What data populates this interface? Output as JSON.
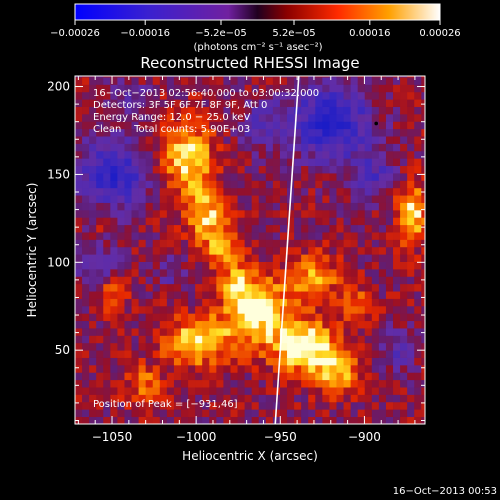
{
  "chart_data": {
    "type": "heatmap",
    "title": "Reconstructed RHESSI Image",
    "xlabel": "Heliocentric X (arcsec)",
    "ylabel": "Heliocentric Y (arcsec)",
    "xlim": [
      -1072,
      -864
    ],
    "ylim": [
      8,
      206
    ],
    "x_ticks": [
      -1050,
      -1000,
      -950,
      -900
    ],
    "x_tick_labels": [
      "−1050",
      "−1000",
      "−950",
      "−900"
    ],
    "y_ticks": [
      50,
      100,
      150,
      200
    ],
    "y_tick_labels": [
      "50",
      "100",
      "150",
      "200"
    ],
    "colorbar": {
      "min": -0.00026,
      "max": 0.00026,
      "ticks": [
        -0.00026,
        -0.00016,
        -5.2e-05,
        5.2e-05,
        0.00016,
        0.00026
      ],
      "tick_labels": [
        "−0.00026",
        "−0.00016",
        "−5.2e−05",
        "5.2e−05",
        "0.00016",
        "0.00026"
      ],
      "unit_label": "(photons cm⁻² s⁻¹ asec⁻²)"
    },
    "info_lines": [
      "16−Oct−2013 02:56:40.000 to 03:00:32.000",
      "Detectors: 3F 5F 6F 7F 8F 9F, Att 0",
      "Energy Range: 12.0 − 25.0 keV",
      "Clean    Total counts: 5.90E+03"
    ],
    "peak_label": "Position of Peak = [−931,46]",
    "peak": {
      "x": -931,
      "y": 46
    },
    "limb": [
      [
        -953,
        8
      ],
      [
        -939,
        206
      ]
    ],
    "timestamp": "16−Oct−2013 00:53",
    "grid": false,
    "colors": {
      "background": "#000000",
      "axes": "#ffffff",
      "text": "#ffffff",
      "limb": "#ffffff",
      "map_low": "#1a1fb0",
      "map_mid": "#6a2aa8",
      "map_high": "#ffd000"
    },
    "blobs": [
      {
        "x": -1005,
        "y": 160,
        "sx": 10,
        "sy": 14,
        "a": 0.00022
      },
      {
        "x": -995,
        "y": 128,
        "sx": 9,
        "sy": 10,
        "a": 0.00018
      },
      {
        "x": -985,
        "y": 108,
        "sx": 8,
        "sy": 9,
        "a": 0.00014
      },
      {
        "x": -965,
        "y": 72,
        "sx": 14,
        "sy": 14,
        "a": 0.00024
      },
      {
        "x": -935,
        "y": 52,
        "sx": 12,
        "sy": 10,
        "a": 0.00026
      },
      {
        "x": -915,
        "y": 38,
        "sx": 9,
        "sy": 9,
        "a": 0.00018
      },
      {
        "x": -1000,
        "y": 55,
        "sx": 13,
        "sy": 9,
        "a": 0.00022
      },
      {
        "x": -1030,
        "y": 30,
        "sx": 8,
        "sy": 8,
        "a": 0.00012
      },
      {
        "x": -1050,
        "y": 82,
        "sx": 7,
        "sy": 7,
        "a": 0.0001
      },
      {
        "x": -930,
        "y": 92,
        "sx": 10,
        "sy": 9,
        "a": 0.00016
      },
      {
        "x": -872,
        "y": 128,
        "sx": 6,
        "sy": 12,
        "a": 0.00022
      },
      {
        "x": -905,
        "y": 76,
        "sx": 7,
        "sy": 7,
        "a": 0.00012
      },
      {
        "x": -1055,
        "y": 125,
        "sx": 5,
        "sy": 5,
        "a": 8e-05
      },
      {
        "x": -975,
        "y": 88,
        "sx": 6,
        "sy": 6,
        "a": 0.00012
      },
      {
        "x": -1050,
        "y": 150,
        "sx": 14,
        "sy": 14,
        "a": -0.00022
      },
      {
        "x": -1060,
        "y": 100,
        "sx": 9,
        "sy": 8,
        "a": -0.00012
      },
      {
        "x": -920,
        "y": 180,
        "sx": 16,
        "sy": 14,
        "a": -0.00024
      },
      {
        "x": -960,
        "y": 178,
        "sx": 10,
        "sy": 10,
        "a": -0.0001
      },
      {
        "x": -895,
        "y": 150,
        "sx": 10,
        "sy": 10,
        "a": -0.00012
      },
      {
        "x": -880,
        "y": 50,
        "sx": 7,
        "sy": 9,
        "a": -0.0001
      },
      {
        "x": -1040,
        "y": 195,
        "sx": 8,
        "sy": 6,
        "a": -8e-05
      },
      {
        "x": -1015,
        "y": 95,
        "sx": 6,
        "sy": 7,
        "a": -8e-05
      }
    ]
  }
}
